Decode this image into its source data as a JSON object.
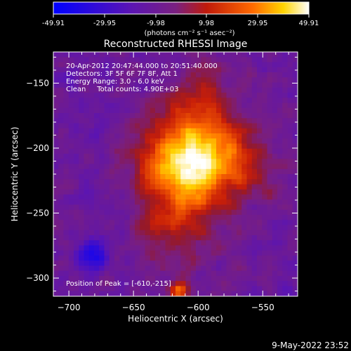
{
  "colorbar": {
    "tick_labels": [
      "-49.91",
      "-29.95",
      "-9.98",
      "9.98",
      "29.95",
      "49.91"
    ],
    "range": [
      -49.91,
      49.91
    ],
    "unit_label": "(photons cm⁻² s⁻¹ asec⁻²)",
    "colormap": [
      "#0000ff",
      "#6a1aa0",
      "#8a2a7a",
      "#c02010",
      "#ff6a00",
      "#ffd400",
      "#ffffff"
    ]
  },
  "title": "Reconstructed RHESSI Image",
  "info_lines": [
    "20-Apr-2012 20:47:44.000 to 20:51:40.000",
    "Detectors: 3F 5F 6F 7F 8F, Att 1",
    "Energy Range: 3.0 - 6.0 keV",
    "Clean     Total counts: 4.90E+03"
  ],
  "peak_label": "Position of Peak = [-610,-215]",
  "footer_date": "9-May-2022 23:52",
  "chart_data": {
    "type": "heatmap",
    "title": "Reconstructed RHESSI Image",
    "xlabel": "Heliocentric X (arcsec)",
    "ylabel": "Heliocentric Y (arcsec)",
    "xlim": [
      -712,
      -523
    ],
    "ylim": [
      -314,
      -126
    ],
    "x_ticks": [
      -700,
      -650,
      -600,
      -550
    ],
    "y_ticks": [
      -300,
      -250,
      -200,
      -150
    ],
    "x_tick_labels": [
      "−700",
      "−650",
      "−600",
      "−550"
    ],
    "y_tick_labels": [
      "−300",
      "−250",
      "−200",
      "−150"
    ],
    "peak": [
      -610,
      -215
    ],
    "value_range": [
      -49.91,
      49.91
    ],
    "peak_value": 49.91,
    "background_value": -12,
    "source_extent_arcsec": [
      45,
      30
    ]
  }
}
